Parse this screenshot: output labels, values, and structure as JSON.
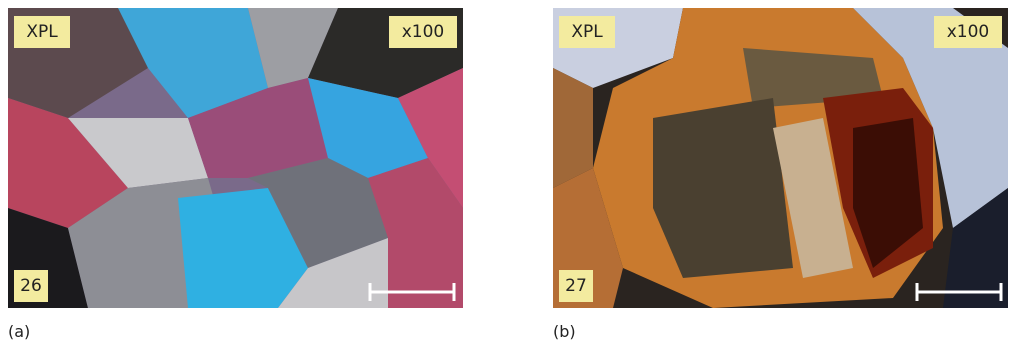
{
  "panels": [
    {
      "light": "XPL",
      "magnification": "x100",
      "number": "26",
      "caption": "(a)"
    },
    {
      "light": "XPL",
      "magnification": "x100",
      "number": "27",
      "caption": "(b)"
    }
  ]
}
